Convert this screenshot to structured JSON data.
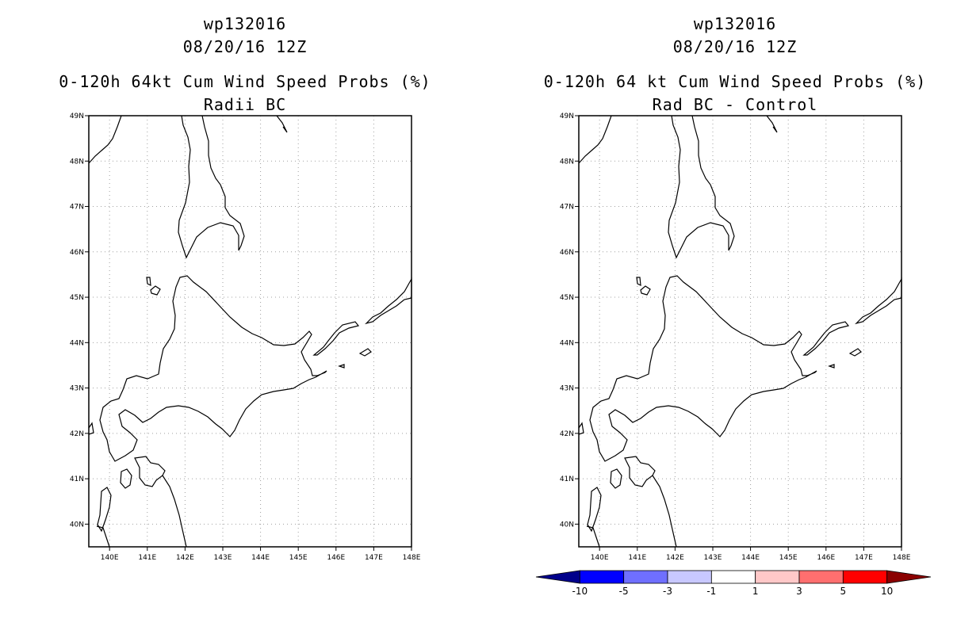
{
  "colors": {
    "background": "#ffffff",
    "coastline": "#000000",
    "grid": "#a0a0a0",
    "colorbar": [
      "#00008b",
      "#0000ff",
      "#6f6fff",
      "#c8c8ff",
      "#ffffff",
      "#ffc8c8",
      "#ff6f6f",
      "#ff0000",
      "#8b0000"
    ]
  },
  "lon_ticks": [
    "140E",
    "141E",
    "142E",
    "143E",
    "144E",
    "145E",
    "146E",
    "147E",
    "148E"
  ],
  "lat_ticks": [
    "49N",
    "48N",
    "47N",
    "46N",
    "45N",
    "44N",
    "43N",
    "42N",
    "41N",
    "40N"
  ],
  "panels": [
    {
      "storm_id": "wp132016",
      "datetime": "08/20/16 12Z",
      "product": "0-120h 64kt Cum Wind Speed Probs (%)",
      "subtitle": "Radii BC",
      "grid_lines": true
    },
    {
      "storm_id": "wp132016",
      "datetime": "08/20/16 12Z",
      "product": "0-120h 64 kt Cum Wind Speed Probs (%)",
      "subtitle": "Rad BC - Control",
      "grid_lines": true
    }
  ],
  "colorbar": {
    "labels": [
      "-10",
      "-5",
      "-3",
      "-1",
      "1",
      "3",
      "5",
      "10"
    ],
    "extend": "both"
  }
}
